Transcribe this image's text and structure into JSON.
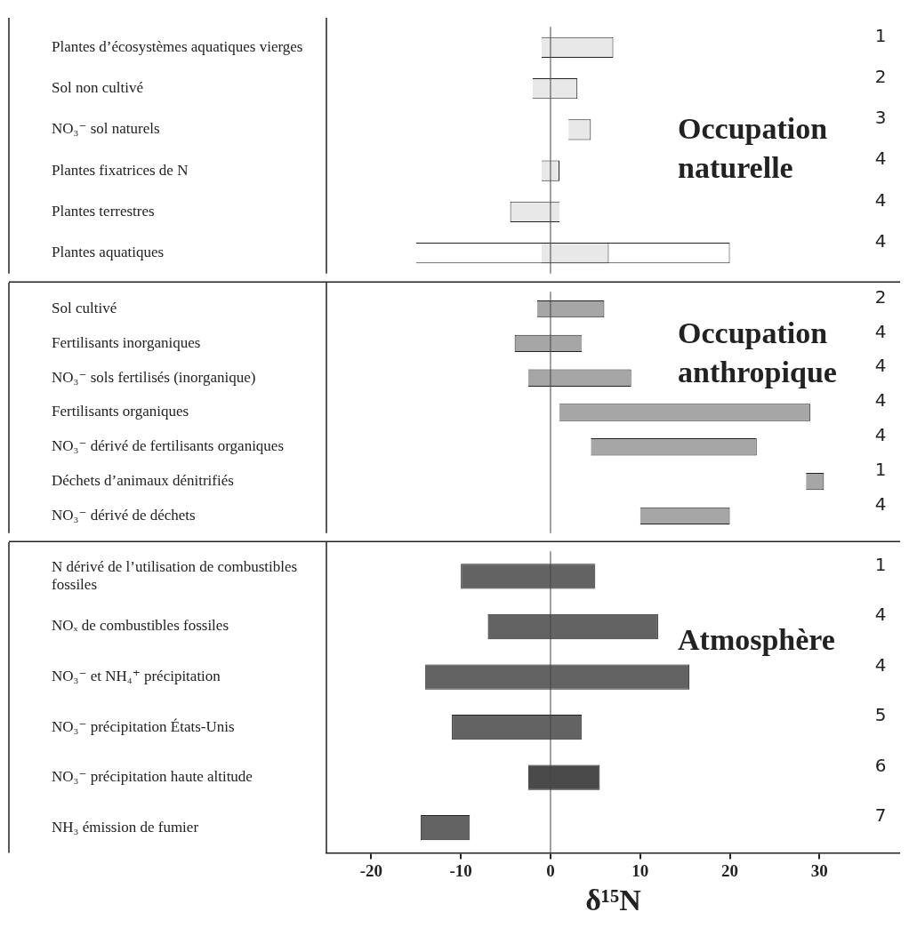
{
  "chart_data": [
    {
      "type": "bar",
      "orientation": "horizontal",
      "tick_labels": "y",
      "xlim": [
        -25,
        39
      ],
      "ref_lines": [
        {
          "axis": "x",
          "value": 0
        }
      ],
      "categories": [
        "Plantes d’écosystèmes aquatiques vierges",
        "Sol non cultivé",
        "NO₃⁻ sol naturels",
        "Plantes fixatrices de N",
        "Plantes terrestres",
        "Plantes aquatiques"
      ],
      "series": [
        {
          "color": "#ffffff",
          "base": [
            null,
            null,
            null,
            null,
            null,
            -15
          ],
          "values": [
            null,
            null,
            null,
            null,
            null,
            35
          ]
        },
        {
          "colors": [
            "#e8e8e8",
            "#e8e8e8",
            "#e8e8e8",
            "#e8e8e8",
            "#e8e8e8",
            "#e8e8e8"
          ],
          "base": [
            -1,
            -2,
            2,
            -1,
            -4.5,
            -1
          ],
          "values": [
            8,
            5,
            2.5,
            2,
            5.5,
            7.5
          ]
        }
      ],
      "annotations": [
        "Occupation naturelle",
        "1",
        "2",
        "3",
        "4",
        "4",
        "4"
      ]
    },
    {
      "type": "bar",
      "orientation": "horizontal",
      "tick_labels": "y",
      "xlim": [
        -25,
        39
      ],
      "ref_lines": [
        {
          "axis": "x",
          "value": 0
        }
      ],
      "categories": [
        "Sol cultivé",
        "Fertilisants inorganiques",
        "NO₃⁻ sols fertilisés (inorganique)",
        "Fertilisants organiques",
        "NO₃⁻ dérivé de fertilisants organiques",
        "Déchets d’animaux dénitrifiés",
        "NO₃⁻ dérivé de déchets"
      ],
      "series": [
        {
          "colors": [
            "#a6a6a6",
            "#a6a6a6",
            "#a6a6a6",
            "#a6a6a6",
            "#a6a6a6",
            "#a6a6a6",
            "#a6a6a6"
          ],
          "base": [
            -1.5,
            -4,
            -2.5,
            1,
            4.5,
            28.5,
            10
          ],
          "values": [
            7.5,
            7.5,
            11.5,
            28,
            18.5,
            2,
            10
          ]
        }
      ],
      "annotations": [
        "Occupation anthropique",
        "2",
        "4",
        "4",
        "4",
        "4",
        "1",
        "4"
      ]
    },
    {
      "type": "bar",
      "orientation": "horizontal",
      "xlim": [
        -25,
        39
      ],
      "xticks": [
        -20,
        -10,
        0,
        10,
        20,
        30
      ],
      "xlabel": "δ¹⁵N",
      "ref_lines": [
        {
          "axis": "x",
          "value": 0
        }
      ],
      "categories": [
        "N dérivé de l’utilisation de combustibles fossiles",
        "NOₓ de combustibles fossiles",
        "NO₃⁻ et NH₄⁺ précipitation",
        "NO₃⁻ précipitation États-Unis",
        "NO₃⁻ précipitation haute altitude",
        "NH₃ émission de fumier"
      ],
      "series": [
        {
          "colors": [
            "#636363",
            "#636363",
            "#636363",
            "#636363",
            "#4a4a4a",
            "#636363"
          ],
          "base": [
            -10,
            -7,
            -14,
            -11,
            -2.5,
            -14.5
          ],
          "values": [
            15,
            19,
            29.5,
            14.5,
            8,
            5.5
          ]
        }
      ],
      "annotations": [
        "Atmosphère",
        "1",
        "4",
        "4",
        "5",
        "6",
        "7"
      ]
    }
  ]
}
